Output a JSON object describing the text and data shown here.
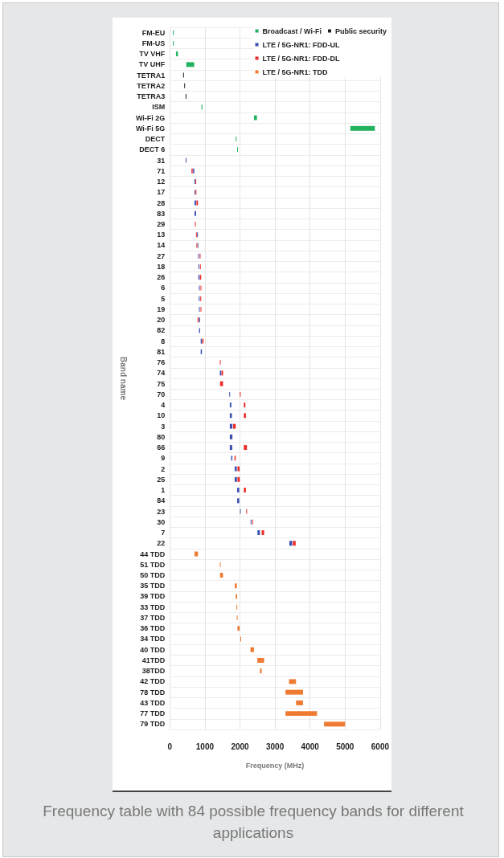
{
  "chart_data": {
    "type": "bar",
    "orientation": "horizontal",
    "xlabel": "Frequency (MHz)",
    "ylabel": "Band name",
    "annotations": [
      "Frequency table with 84 possible frequency bands for different applications"
    ],
    "categories": [
      "FM-EU",
      "FM-US",
      "TV VHF",
      "TV UHF",
      "TETRA1",
      "TETRA2",
      "TETRA3",
      "ISM",
      "Wi-Fi 2G",
      "Wi-Fi 5G",
      "DECT",
      "DECT 6",
      "31",
      "71",
      "12",
      "17",
      "28",
      "83",
      "29",
      "13",
      "14",
      "27",
      "18",
      "26",
      "6",
      "5",
      "19",
      "20",
      "82",
      "8",
      "81",
      "76",
      "74",
      "75",
      "70",
      "4",
      "10",
      "3",
      "80",
      "66",
      "9",
      "2",
      "25",
      "1",
      "84",
      "23",
      "30",
      "7",
      "22",
      "44 TDD",
      "51 TDD",
      "50 TDD",
      "35 TDD",
      "39 TDD",
      "33 TDD",
      "37 TDD",
      "36 TDD",
      "34 TDD",
      "40 TDD",
      "41TDD",
      "38TDD",
      "42 TDD",
      "78 TDD",
      "43 TDD",
      "77 TDD",
      "79 TDD"
    ],
    "xlim": [
      0,
      6000
    ],
    "xticks": [
      0,
      1000,
      2000,
      3000,
      4000,
      5000,
      6000
    ],
    "grid": true,
    "legend": "top right",
    "series": [
      {
        "name": "Broadcast / Wi-Fi",
        "color": "#22b35e",
        "base": [
          88,
          88,
          174,
          470,
          null,
          null,
          null,
          902,
          2400,
          5150,
          1880,
          1920,
          null,
          null,
          null,
          null,
          null,
          null,
          null,
          null,
          null,
          null,
          null,
          null,
          null,
          null,
          null,
          null,
          null,
          null,
          null,
          null,
          null,
          null,
          null,
          null,
          null,
          null,
          null,
          null,
          null,
          null,
          null,
          null,
          null,
          null,
          null,
          null,
          null,
          null,
          null,
          null,
          null,
          null,
          null,
          null,
          null,
          null,
          null,
          null,
          null,
          null,
          null,
          null,
          null,
          null
        ],
        "values": [
          20,
          20,
          56,
          224,
          null,
          null,
          null,
          26,
          85,
          700,
          20,
          10,
          null,
          null,
          null,
          null,
          null,
          null,
          null,
          null,
          null,
          null,
          null,
          null,
          null,
          null,
          null,
          null,
          null,
          null,
          null,
          null,
          null,
          null,
          null,
          null,
          null,
          null,
          null,
          null,
          null,
          null,
          null,
          null,
          null,
          null,
          null,
          null,
          null,
          null,
          null,
          null,
          null,
          null,
          null,
          null,
          null,
          null,
          null,
          null,
          null,
          null,
          null,
          null,
          null,
          null
        ]
      },
      {
        "name": "Public security",
        "color": "#222222",
        "base": [
          null,
          null,
          null,
          null,
          380,
          410,
          450,
          null,
          null,
          null,
          null,
          null,
          null,
          null,
          null,
          null,
          null,
          null,
          null,
          null,
          null,
          null,
          null,
          null,
          null,
          null,
          null,
          null,
          null,
          null,
          null,
          null,
          null,
          null,
          null,
          null,
          null,
          null,
          null,
          null,
          null,
          null,
          null,
          null,
          null,
          null,
          null,
          null,
          null,
          null,
          null,
          null,
          null,
          null,
          null,
          null,
          null,
          null,
          null,
          null,
          null,
          null,
          null,
          null,
          null,
          null
        ],
        "values": [
          null,
          null,
          null,
          null,
          20,
          20,
          20,
          null,
          null,
          null,
          null,
          null,
          null,
          null,
          null,
          null,
          null,
          null,
          null,
          null,
          null,
          null,
          null,
          null,
          null,
          null,
          null,
          null,
          null,
          null,
          null,
          null,
          null,
          null,
          null,
          null,
          null,
          null,
          null,
          null,
          null,
          null,
          null,
          null,
          null,
          null,
          null,
          null,
          null,
          null,
          null,
          null,
          null,
          null,
          null,
          null,
          null,
          null,
          null,
          null,
          null,
          null,
          null,
          null,
          null,
          null
        ]
      },
      {
        "name": "LTE / 5G-NR1: FDD-UL",
        "color": "#3b50b2",
        "base": [
          null,
          null,
          null,
          null,
          null,
          null,
          null,
          null,
          null,
          null,
          null,
          null,
          452,
          663,
          699,
          704,
          703,
          703,
          null,
          777,
          788,
          807,
          815,
          814,
          830,
          824,
          830,
          832,
          832,
          880,
          880,
          null,
          1427,
          null,
          1695,
          1710,
          1710,
          1710,
          1710,
          1710,
          1750,
          1850,
          1850,
          1920,
          1920,
          2000,
          2305,
          2500,
          3410,
          null,
          null,
          null,
          null,
          null,
          null,
          null,
          null,
          null,
          null,
          null,
          null,
          null,
          null,
          null,
          null,
          null
        ],
        "values": [
          null,
          null,
          null,
          null,
          null,
          null,
          null,
          null,
          null,
          null,
          null,
          null,
          5,
          35,
          17,
          12,
          45,
          45,
          null,
          10,
          10,
          17,
          15,
          35,
          10,
          25,
          15,
          30,
          30,
          35,
          35,
          null,
          43,
          null,
          15,
          45,
          60,
          75,
          75,
          70,
          35,
          60,
          65,
          60,
          60,
          20,
          10,
          70,
          80,
          null,
          null,
          null,
          null,
          null,
          null,
          null,
          null,
          null,
          null,
          null,
          null,
          null,
          null,
          null,
          null,
          null
        ]
      },
      {
        "name": "LTE / 5G-NR1: FDD-DL",
        "color": "#ee2a2a",
        "base": [
          null,
          null,
          null,
          null,
          null,
          null,
          null,
          null,
          null,
          null,
          null,
          null,
          null,
          617,
          729,
          734,
          758,
          null,
          717,
          746,
          758,
          852,
          860,
          859,
          875,
          869,
          875,
          791,
          null,
          925,
          null,
          1427,
          1475,
          1432,
          1995,
          2110,
          2110,
          1805,
          null,
          2110,
          1845,
          1930,
          1930,
          2110,
          null,
          2180,
          2350,
          2620,
          3510,
          null,
          null,
          null,
          null,
          null,
          null,
          null,
          null,
          null,
          null,
          null,
          null,
          null,
          null,
          null,
          null,
          null
        ],
        "values": [
          null,
          null,
          null,
          null,
          null,
          null,
          null,
          null,
          null,
          null,
          null,
          null,
          null,
          35,
          17,
          12,
          45,
          null,
          11,
          10,
          10,
          17,
          15,
          35,
          10,
          25,
          15,
          30,
          null,
          35,
          null,
          5,
          43,
          85,
          25,
          45,
          60,
          75,
          null,
          90,
          35,
          60,
          65,
          60,
          null,
          20,
          10,
          70,
          80,
          null,
          null,
          null,
          null,
          null,
          null,
          null,
          null,
          null,
          null,
          null,
          null,
          null,
          null,
          null,
          null,
          null
        ]
      },
      {
        "name": "LTE / 5G-NR1: TDD",
        "color": "#ef7b33",
        "base": [
          null,
          null,
          null,
          null,
          null,
          null,
          null,
          null,
          null,
          null,
          null,
          null,
          null,
          null,
          null,
          null,
          null,
          null,
          null,
          null,
          null,
          null,
          null,
          null,
          null,
          null,
          null,
          null,
          null,
          null,
          null,
          null,
          null,
          null,
          null,
          null,
          null,
          null,
          null,
          null,
          null,
          null,
          null,
          null,
          null,
          null,
          null,
          null,
          null,
          703,
          1427,
          1432,
          1850,
          1880,
          1900,
          1910,
          1930,
          2010,
          2300,
          2496,
          2570,
          3400,
          3300,
          3600,
          3300,
          4400
        ],
        "values": [
          null,
          null,
          null,
          null,
          null,
          null,
          null,
          null,
          null,
          null,
          null,
          null,
          null,
          null,
          null,
          null,
          null,
          null,
          null,
          null,
          null,
          null,
          null,
          null,
          null,
          null,
          null,
          null,
          null,
          null,
          null,
          null,
          null,
          null,
          null,
          null,
          null,
          null,
          null,
          null,
          null,
          null,
          null,
          null,
          null,
          null,
          null,
          null,
          null,
          100,
          5,
          85,
          60,
          40,
          20,
          20,
          60,
          15,
          100,
          194,
          50,
          200,
          500,
          200,
          900,
          600
        ]
      }
    ]
  }
}
